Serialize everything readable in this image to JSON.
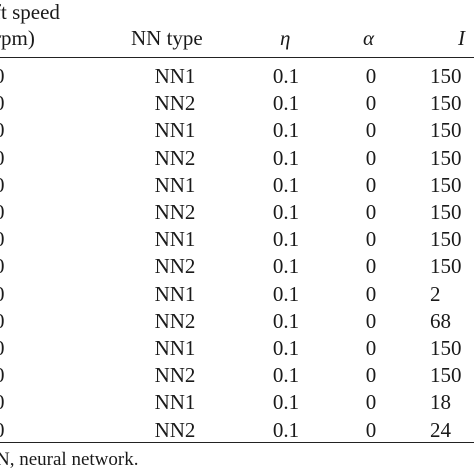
{
  "table": {
    "header": {
      "col0_line1": "ft speed",
      "col0_line2": "rpm)",
      "col1": "NN type",
      "col2": "η",
      "col3": "α",
      "col4": "I"
    },
    "rows": [
      {
        "c0": "0",
        "c1": "NN1",
        "c2": "0.1",
        "c3": "0",
        "c4": "150"
      },
      {
        "c0": "0",
        "c1": "NN2",
        "c2": "0.1",
        "c3": "0",
        "c4": "150"
      },
      {
        "c0": "0",
        "c1": "NN1",
        "c2": "0.1",
        "c3": "0",
        "c4": "150"
      },
      {
        "c0": "0",
        "c1": "NN2",
        "c2": "0.1",
        "c3": "0",
        "c4": "150"
      },
      {
        "c0": "0",
        "c1": "NN1",
        "c2": "0.1",
        "c3": "0",
        "c4": "150"
      },
      {
        "c0": "0",
        "c1": "NN2",
        "c2": "0.1",
        "c3": "0",
        "c4": "150"
      },
      {
        "c0": "0",
        "c1": "NN1",
        "c2": "0.1",
        "c3": "0",
        "c4": "150"
      },
      {
        "c0": "0",
        "c1": "NN2",
        "c2": "0.1",
        "c3": "0",
        "c4": "150"
      },
      {
        "c0": "0",
        "c1": "NN1",
        "c2": "0.1",
        "c3": "0",
        "c4": "2"
      },
      {
        "c0": "0",
        "c1": "NN2",
        "c2": "0.1",
        "c3": "0",
        "c4": "68"
      },
      {
        "c0": "0",
        "c1": "NN1",
        "c2": "0.1",
        "c3": "0",
        "c4": "150"
      },
      {
        "c0": "0",
        "c1": "NN2",
        "c2": "0.1",
        "c3": "0",
        "c4": "150"
      },
      {
        "c0": "0",
        "c1": "NN1",
        "c2": "0.1",
        "c3": "0",
        "c4": "18"
      },
      {
        "c0": "0",
        "c1": "NN2",
        "c2": "0.1",
        "c3": "0",
        "c4": "24"
      }
    ]
  },
  "footnote": "N, neural network."
}
